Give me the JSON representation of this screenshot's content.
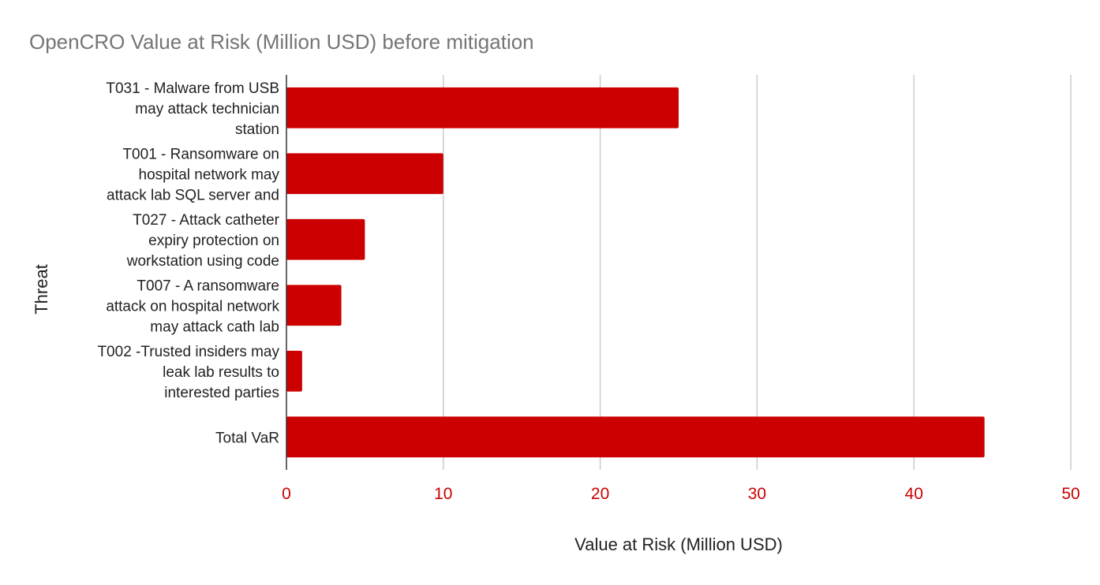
{
  "chart_data": {
    "type": "bar",
    "orientation": "horizontal",
    "title": "OpenCRO Value at Risk (Million USD) before mitigation",
    "xlabel": "Value at Risk (Million USD)",
    "ylabel": "Threat",
    "xlim": [
      0,
      50
    ],
    "x_ticks": [
      0,
      10,
      20,
      30,
      40,
      50
    ],
    "grid": true,
    "legend": "none",
    "categories": [
      [
        "T031 - Malware from USB",
        "may attack technician",
        "station"
      ],
      [
        "T001 - Ransomware on",
        "hospital network may",
        "attack lab SQL server and"
      ],
      [
        "T027 - Attack catheter",
        "expiry protection on",
        "workstation using code"
      ],
      [
        "T007 - A ransomware",
        "attack on hospital network",
        "may attack cath lab"
      ],
      [
        "T002 -Trusted insiders may",
        "leak lab results to",
        "interested parties"
      ],
      [
        "Total VaR"
      ]
    ],
    "values": [
      25,
      10,
      5,
      3.5,
      1,
      44.5
    ],
    "colors": {
      "bar": "#cc0000",
      "tick_label": "#cc0000",
      "title": "#757575",
      "grid": "#cccccc",
      "axis": "#333333",
      "text": "#222222"
    }
  }
}
